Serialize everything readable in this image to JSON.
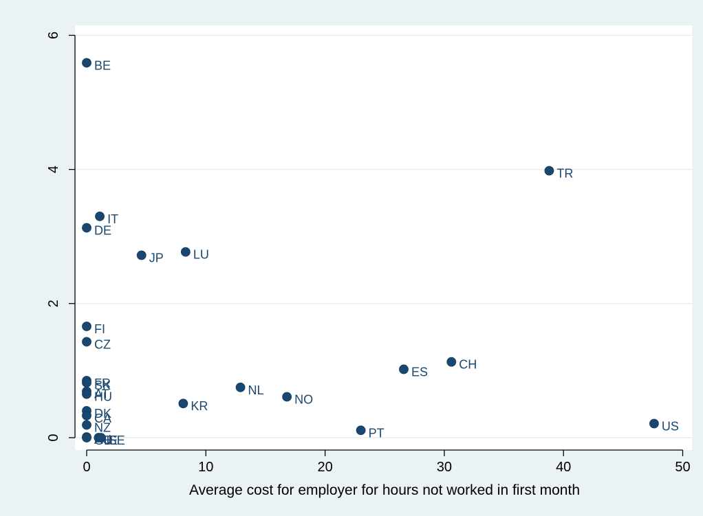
{
  "chart_data": {
    "type": "scatter",
    "title": "",
    "xlabel": "Average cost for employer for hours not worked in first month",
    "ylabel": "",
    "xlim": [
      -1,
      50.5
    ],
    "ylim": [
      -0.2,
      6.3
    ],
    "xticks": [
      0,
      10,
      20,
      30,
      40,
      50
    ],
    "yticks": [
      0,
      2,
      4,
      6
    ],
    "x_tick_labels": [
      "0",
      "10",
      "20",
      "30",
      "40",
      "50"
    ],
    "y_tick_labels": [
      "0",
      "2",
      "4",
      "6"
    ],
    "grid": "horizontal",
    "legend": "none",
    "marker_color": "#1a476f",
    "background_color": "#eaf2f3",
    "plot_background_color": "#ffffff",
    "points": [
      {
        "label": "BE",
        "x": 0.0,
        "y": 5.59
      },
      {
        "label": "TR",
        "x": 38.8,
        "y": 3.98
      },
      {
        "label": "IT",
        "x": 1.1,
        "y": 3.3
      },
      {
        "label": "DE",
        "x": 0.0,
        "y": 3.13
      },
      {
        "label": "JP",
        "x": 4.6,
        "y": 2.72
      },
      {
        "label": "LU",
        "x": 8.3,
        "y": 2.77
      },
      {
        "label": "FI",
        "x": 0.0,
        "y": 1.66
      },
      {
        "label": "CZ",
        "x": 0.0,
        "y": 1.43
      },
      {
        "label": "CH",
        "x": 30.6,
        "y": 1.13
      },
      {
        "label": "ES",
        "x": 26.6,
        "y": 1.02
      },
      {
        "label": "FR",
        "x": 0.0,
        "y": 0.85
      },
      {
        "label": "SK",
        "x": 0.0,
        "y": 0.82
      },
      {
        "label": "NL",
        "x": 12.9,
        "y": 0.75
      },
      {
        "label": "AT",
        "x": 0.0,
        "y": 0.69
      },
      {
        "label": "HU",
        "x": 0.0,
        "y": 0.65
      },
      {
        "label": "NO",
        "x": 16.8,
        "y": 0.61
      },
      {
        "label": "KR",
        "x": 8.1,
        "y": 0.51
      },
      {
        "label": "DK",
        "x": 0.0,
        "y": 0.4
      },
      {
        "label": "CA",
        "x": 0.0,
        "y": 0.33
      },
      {
        "label": "US",
        "x": 47.6,
        "y": 0.21
      },
      {
        "label": "NZ",
        "x": 0.0,
        "y": 0.19
      },
      {
        "label": "PT",
        "x": 23.0,
        "y": 0.11
      },
      {
        "label": "AU",
        "x": 0.0,
        "y": 0.01
      },
      {
        "label": "GB",
        "x": 0.0,
        "y": 0.0
      },
      {
        "label": "IE",
        "x": 1.0,
        "y": 0.0
      },
      {
        "label": "SE",
        "x": 1.2,
        "y": 0.0
      }
    ]
  }
}
